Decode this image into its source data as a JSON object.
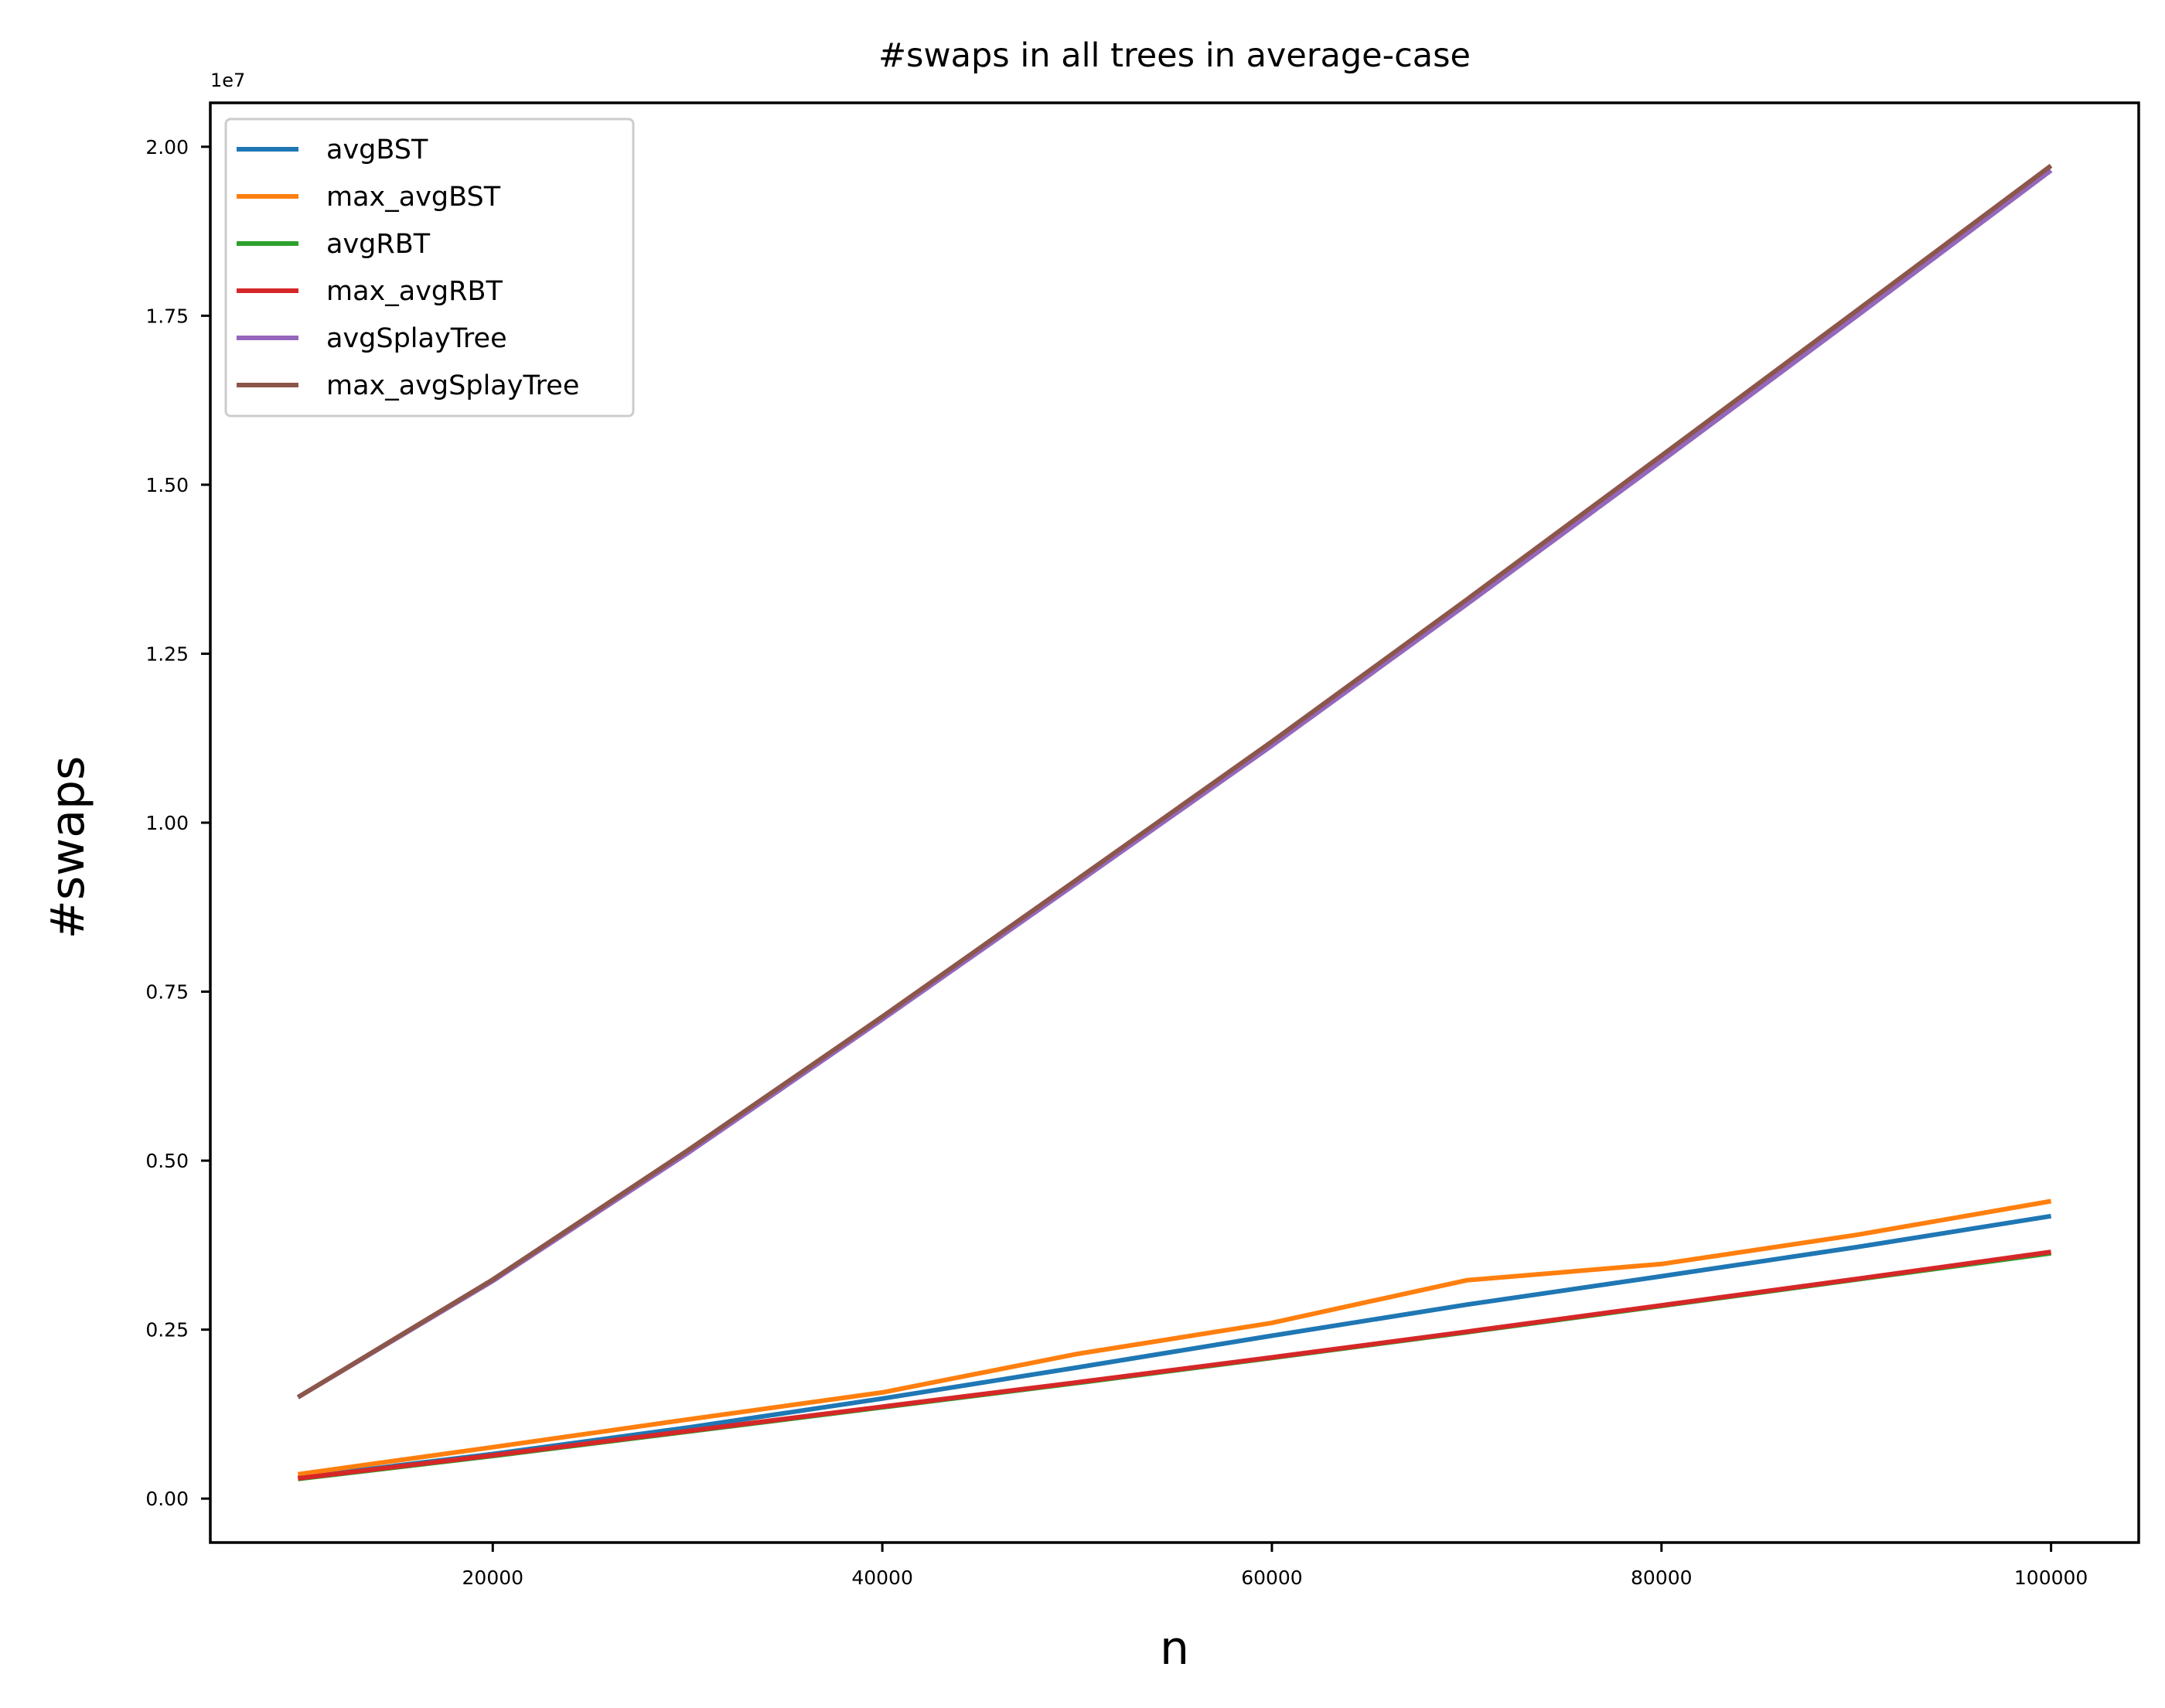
{
  "chart_data": {
    "type": "line",
    "title": "#swaps in all trees in average-case",
    "xlabel": "n",
    "ylabel": "#swaps",
    "offset_text": "1e7",
    "xlim": [
      5500,
      104500
    ],
    "ylim": [
      -0.065,
      2.065
    ],
    "y_scale": 10000000,
    "x_ticks": [
      20000,
      40000,
      60000,
      80000,
      100000
    ],
    "x_tick_labels": [
      "20000",
      "40000",
      "60000",
      "80000",
      "100000"
    ],
    "y_ticks": [
      0,
      0.25,
      0.5,
      0.75,
      1.0,
      1.25,
      1.5,
      1.75,
      2.0
    ],
    "y_tick_labels": [
      "0.00",
      "0.25",
      "0.50",
      "0.75",
      "1.00",
      "1.25",
      "1.50",
      "1.75",
      "2.00"
    ],
    "grid": false,
    "legend_position": "top-left",
    "x": [
      10000,
      20000,
      30000,
      40000,
      50000,
      60000,
      70000,
      80000,
      90000,
      100000
    ],
    "series": [
      {
        "name": "avgBST",
        "color": "#1f77b4",
        "values": [
          0.031,
          0.066,
          0.105,
          0.148,
          0.194,
          0.241,
          0.287,
          0.329,
          0.372,
          0.418
        ]
      },
      {
        "name": "max_avgBST",
        "color": "#ff7f0e",
        "values": [
          0.036,
          0.076,
          0.117,
          0.157,
          0.214,
          0.26,
          0.323,
          0.347,
          0.39,
          0.44
        ]
      },
      {
        "name": "avgRBT",
        "color": "#2ca02c",
        "values": [
          0.029,
          0.063,
          0.099,
          0.135,
          0.171,
          0.208,
          0.246,
          0.285,
          0.324,
          0.363
        ]
      },
      {
        "name": "max_avgRBT",
        "color": "#d62728",
        "values": [
          0.03,
          0.064,
          0.1,
          0.136,
          0.172,
          0.209,
          0.247,
          0.286,
          0.325,
          0.365
        ]
      },
      {
        "name": "avgSplayTree",
        "color": "#9467bd",
        "values": [
          0.15,
          0.322,
          0.511,
          0.709,
          0.911,
          1.114,
          1.323,
          1.535,
          1.749,
          1.965
        ]
      },
      {
        "name": "max_avgSplayTree",
        "color": "#8c564b",
        "values": [
          0.15,
          0.324,
          0.515,
          0.713,
          0.916,
          1.12,
          1.33,
          1.543,
          1.757,
          1.972
        ]
      }
    ]
  }
}
